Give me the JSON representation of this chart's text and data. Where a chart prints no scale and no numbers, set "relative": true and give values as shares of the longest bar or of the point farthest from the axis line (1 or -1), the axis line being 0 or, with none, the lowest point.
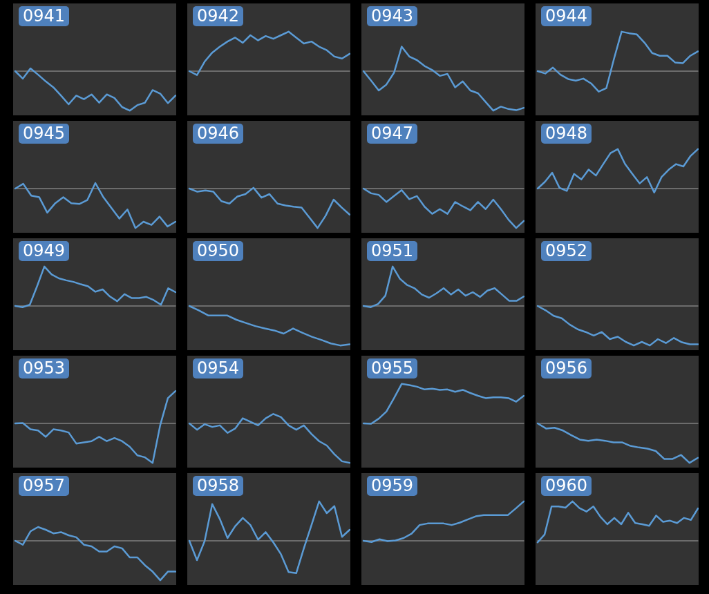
{
  "chart_data": [
    {
      "type": "line",
      "title": "0941",
      "relative": true,
      "color": "#5b9bd5",
      "categories": [
        null,
        null,
        null,
        null,
        null,
        null,
        null,
        null,
        null,
        null,
        null,
        null,
        null,
        null,
        null,
        null,
        null,
        null,
        null,
        null,
        null,
        null
      ],
      "values": [
        0,
        -0.19,
        0.07,
        -0.09,
        -0.26,
        -0.41,
        -0.62,
        -0.84,
        -0.62,
        -0.71,
        -0.59,
        -0.8,
        -0.59,
        -0.68,
        -0.91,
        -1,
        -0.86,
        -0.8,
        -0.48,
        -0.57,
        -0.81,
        -0.62
      ]
    },
    {
      "type": "line",
      "title": "0942",
      "relative": true,
      "color": "#5b9bd5",
      "categories": [
        null,
        null,
        null,
        null,
        null,
        null,
        null,
        null,
        null,
        null,
        null,
        null,
        null,
        null,
        null,
        null,
        null,
        null,
        null,
        null,
        null,
        null
      ],
      "values": [
        0,
        -0.1,
        0.24,
        0.47,
        0.62,
        0.75,
        0.85,
        0.72,
        0.91,
        0.78,
        0.89,
        0.82,
        0.91,
        1,
        0.85,
        0.7,
        0.75,
        0.62,
        0.53,
        0.37,
        0.32,
        0.44
      ]
    },
    {
      "type": "line",
      "title": "0943",
      "relative": true,
      "color": "#5b9bd5",
      "categories": [
        null,
        null,
        null,
        null,
        null,
        null,
        null,
        null,
        null,
        null,
        null,
        null,
        null,
        null,
        null,
        null,
        null,
        null,
        null,
        null,
        null,
        null
      ],
      "values": [
        0,
        -0.24,
        -0.49,
        -0.34,
        -0.04,
        0.62,
        0.37,
        0.28,
        0.13,
        0.03,
        -0.12,
        -0.07,
        -0.41,
        -0.26,
        -0.49,
        -0.56,
        -0.78,
        -1,
        -0.9,
        -0.96,
        -0.99,
        -0.93
      ]
    },
    {
      "type": "line",
      "title": "0944",
      "relative": true,
      "color": "#5b9bd5",
      "categories": [
        null,
        null,
        null,
        null,
        null,
        null,
        null,
        null,
        null,
        null,
        null,
        null,
        null,
        null,
        null,
        null,
        null,
        null,
        null,
        null,
        null,
        null
      ],
      "values": [
        0,
        -0.06,
        0.09,
        -0.09,
        -0.2,
        -0.24,
        -0.19,
        -0.31,
        -0.52,
        -0.43,
        0.31,
        1,
        0.96,
        0.93,
        0.72,
        0.46,
        0.39,
        0.39,
        0.22,
        0.2,
        0.39,
        0.5
      ]
    },
    {
      "type": "line",
      "title": "0945",
      "relative": true,
      "color": "#5b9bd5",
      "categories": [
        null,
        null,
        null,
        null,
        null,
        null,
        null,
        null,
        null,
        null,
        null,
        null,
        null,
        null,
        null,
        null,
        null,
        null,
        null,
        null,
        null
      ],
      "values": [
        0,
        0.12,
        -0.18,
        -0.22,
        -0.61,
        -0.37,
        -0.22,
        -0.37,
        -0.39,
        -0.29,
        0.14,
        -0.22,
        -0.49,
        -0.76,
        -0.53,
        -1,
        -0.84,
        -0.92,
        -0.71,
        -0.96,
        -0.84
      ]
    },
    {
      "type": "line",
      "title": "0946",
      "relative": true,
      "color": "#5b9bd5",
      "categories": [
        null,
        null,
        null,
        null,
        null,
        null,
        null,
        null,
        null,
        null,
        null,
        null,
        null,
        null,
        null,
        null,
        null,
        null,
        null,
        null,
        null
      ],
      "values": [
        0,
        -0.08,
        -0.05,
        -0.08,
        -0.32,
        -0.38,
        -0.2,
        -0.14,
        0.02,
        -0.23,
        -0.14,
        -0.38,
        -0.43,
        -0.46,
        -0.48,
        -0.74,
        -1,
        -0.69,
        -0.28,
        -0.48,
        -0.66
      ]
    },
    {
      "type": "line",
      "title": "0947",
      "relative": true,
      "color": "#5b9bd5",
      "categories": [
        null,
        null,
        null,
        null,
        null,
        null,
        null,
        null,
        null,
        null,
        null,
        null,
        null,
        null,
        null,
        null,
        null,
        null,
        null,
        null,
        null,
        null
      ],
      "values": [
        0,
        -0.12,
        -0.16,
        -0.34,
        -0.19,
        -0.04,
        -0.27,
        -0.19,
        -0.46,
        -0.64,
        -0.52,
        -0.64,
        -0.34,
        -0.45,
        -0.55,
        -0.34,
        -0.52,
        -0.28,
        -0.52,
        -0.79,
        -1,
        -0.82
      ]
    },
    {
      "type": "line",
      "title": "0948",
      "relative": true,
      "color": "#5b9bd5",
      "categories": [
        null,
        null,
        null,
        null,
        null,
        null,
        null,
        null,
        null,
        null,
        null,
        null,
        null,
        null,
        null,
        null,
        null,
        null,
        null,
        null,
        null,
        null,
        null
      ],
      "values": [
        0,
        0.17,
        0.4,
        0.02,
        -0.06,
        0.37,
        0.23,
        0.48,
        0.33,
        0.62,
        0.9,
        1,
        0.62,
        0.37,
        0.13,
        0.29,
        -0.1,
        0.29,
        0.48,
        0.62,
        0.56,
        0.83,
        1
      ]
    },
    {
      "type": "line",
      "title": "0949",
      "relative": true,
      "color": "#5b9bd5",
      "categories": [
        null,
        null,
        null,
        null,
        null,
        null,
        null,
        null,
        null,
        null,
        null,
        null,
        null,
        null,
        null,
        null,
        null,
        null,
        null,
        null,
        null,
        null,
        null
      ],
      "values": [
        0,
        -0.03,
        0.03,
        0.5,
        1,
        0.8,
        0.7,
        0.65,
        0.61,
        0.55,
        0.5,
        0.36,
        0.42,
        0.24,
        0.12,
        0.3,
        0.2,
        0.2,
        0.23,
        0.15,
        0.03,
        0.45,
        0.35
      ]
    },
    {
      "type": "line",
      "title": "0950",
      "relative": true,
      "color": "#5b9bd5",
      "categories": [
        null,
        null,
        null,
        null,
        null,
        null,
        null,
        null,
        null,
        null,
        null,
        null,
        null,
        null,
        null,
        null,
        null,
        null
      ],
      "values": [
        0,
        -0.11,
        -0.24,
        -0.24,
        -0.24,
        -0.35,
        -0.43,
        -0.51,
        -0.57,
        -0.62,
        -0.7,
        -0.57,
        -0.68,
        -0.78,
        -0.86,
        -0.95,
        -1,
        -0.97
      ]
    },
    {
      "type": "line",
      "title": "0951",
      "relative": true,
      "color": "#5b9bd5",
      "categories": [
        null,
        null,
        null,
        null,
        null,
        null,
        null,
        null,
        null,
        null,
        null,
        null,
        null,
        null,
        null,
        null,
        null,
        null,
        null,
        null,
        null,
        null,
        null
      ],
      "values": [
        0,
        -0.03,
        0.05,
        0.26,
        1,
        0.69,
        0.53,
        0.45,
        0.29,
        0.21,
        0.32,
        0.45,
        0.29,
        0.42,
        0.26,
        0.35,
        0.23,
        0.39,
        0.45,
        0.29,
        0.13,
        0.13,
        0.24
      ]
    },
    {
      "type": "line",
      "title": "0952",
      "relative": true,
      "color": "#5b9bd5",
      "categories": [
        null,
        null,
        null,
        null,
        null,
        null,
        null,
        null,
        null,
        null,
        null,
        null,
        null,
        null,
        null,
        null,
        null,
        null,
        null,
        null,
        null
      ],
      "values": [
        0,
        -0.11,
        -0.25,
        -0.31,
        -0.47,
        -0.59,
        -0.66,
        -0.75,
        -0.66,
        -0.84,
        -0.78,
        -0.91,
        -1,
        -0.91,
        -1,
        -0.84,
        -0.94,
        -0.81,
        -0.92,
        -0.97,
        -0.97
      ]
    },
    {
      "type": "line",
      "title": "0953",
      "relative": true,
      "color": "#5b9bd5",
      "categories": [
        null,
        null,
        null,
        null,
        null,
        null,
        null,
        null,
        null,
        null,
        null,
        null,
        null,
        null,
        null,
        null,
        null,
        null,
        null,
        null,
        null,
        null
      ],
      "values": [
        0,
        0.01,
        -0.15,
        -0.18,
        -0.34,
        -0.15,
        -0.18,
        -0.23,
        -0.51,
        -0.48,
        -0.45,
        -0.34,
        -0.45,
        -0.37,
        -0.45,
        -0.59,
        -0.81,
        -0.86,
        -1,
        -0.04,
        0.64,
        0.82
      ]
    },
    {
      "type": "line",
      "title": "0954",
      "relative": true,
      "color": "#5b9bd5",
      "categories": [
        null,
        null,
        null,
        null,
        null,
        null,
        null,
        null,
        null,
        null,
        null,
        null,
        null,
        null,
        null,
        null,
        null,
        null,
        null,
        null,
        null,
        null
      ],
      "values": [
        0,
        -0.16,
        -0.02,
        -0.09,
        -0.05,
        -0.24,
        -0.13,
        0.13,
        0.04,
        -0.05,
        0.13,
        0.24,
        0.16,
        -0.05,
        -0.16,
        -0.05,
        -0.27,
        -0.45,
        -0.56,
        -0.78,
        -0.96,
        -1
      ]
    },
    {
      "type": "line",
      "title": "0955",
      "relative": true,
      "color": "#5b9bd5",
      "categories": [
        null,
        null,
        null,
        null,
        null,
        null,
        null,
        null,
        null,
        null,
        null,
        null,
        null,
        null,
        null,
        null,
        null,
        null,
        null,
        null,
        null,
        null
      ],
      "values": [
        0,
        -0.01,
        0.12,
        0.3,
        0.64,
        1,
        0.97,
        0.93,
        0.86,
        0.88,
        0.85,
        0.86,
        0.8,
        0.85,
        0.77,
        0.7,
        0.64,
        0.66,
        0.66,
        0.64,
        0.55,
        0.7
      ]
    },
    {
      "type": "line",
      "title": "0956",
      "relative": true,
      "color": "#5b9bd5",
      "categories": [
        null,
        null,
        null,
        null,
        null,
        null,
        null,
        null,
        null,
        null,
        null,
        null,
        null,
        null,
        null,
        null,
        null,
        null,
        null,
        null
      ],
      "values": [
        0,
        -0.13,
        -0.11,
        -0.18,
        -0.3,
        -0.41,
        -0.44,
        -0.41,
        -0.44,
        -0.48,
        -0.48,
        -0.57,
        -0.61,
        -0.64,
        -0.7,
        -0.9,
        -0.9,
        -0.8,
        -1,
        -0.87
      ]
    },
    {
      "type": "line",
      "title": "0957",
      "relative": true,
      "color": "#5b9bd5",
      "categories": [
        null,
        null,
        null,
        null,
        null,
        null,
        null,
        null,
        null,
        null,
        null,
        null,
        null,
        null,
        null,
        null,
        null,
        null,
        null,
        null,
        null,
        null
      ],
      "values": [
        0,
        -0.1,
        0.24,
        0.35,
        0.28,
        0.19,
        0.22,
        0.14,
        0.09,
        -0.1,
        -0.14,
        -0.27,
        -0.27,
        -0.14,
        -0.19,
        -0.42,
        -0.42,
        -0.62,
        -0.78,
        -1,
        -0.78,
        -0.78
      ]
    },
    {
      "type": "line",
      "title": "0958",
      "relative": true,
      "color": "#5b9bd5",
      "categories": [
        null,
        null,
        null,
        null,
        null,
        null,
        null,
        null,
        null,
        null,
        null,
        null,
        null,
        null,
        null,
        null,
        null,
        null,
        null,
        null,
        null,
        null
      ],
      "values": [
        0,
        -0.49,
        -0.01,
        0.93,
        0.55,
        0.07,
        0.37,
        0.58,
        0.4,
        0.03,
        0.22,
        -0.04,
        -0.34,
        -0.79,
        -0.82,
        -0.19,
        0.4,
        1,
        0.7,
        0.88,
        0.1,
        0.28
      ]
    },
    {
      "type": "line",
      "title": "0959",
      "relative": true,
      "color": "#5b9bd5",
      "categories": [
        null,
        null,
        null,
        null,
        null,
        null,
        null,
        null,
        null,
        null,
        null,
        null,
        null,
        null,
        null,
        null,
        null,
        null,
        null,
        null,
        null
      ],
      "values": [
        0,
        -0.03,
        0.04,
        -0.01,
        0.01,
        0.07,
        0.18,
        0.4,
        0.44,
        0.44,
        0.44,
        0.4,
        0.46,
        0.54,
        0.62,
        0.65,
        0.65,
        0.65,
        0.65,
        0.82,
        1
      ]
    },
    {
      "type": "line",
      "title": "0960",
      "relative": true,
      "color": "#5b9bd5",
      "categories": [
        null,
        null,
        null,
        null,
        null,
        null,
        null,
        null,
        null,
        null,
        null,
        null,
        null,
        null,
        null,
        null,
        null,
        null,
        null,
        null,
        null,
        null,
        null,
        null
      ],
      "values": [
        -0.04,
        0.16,
        0.87,
        0.87,
        0.84,
        1,
        0.83,
        0.74,
        0.87,
        0.61,
        0.42,
        0.58,
        0.42,
        0.71,
        0.45,
        0.42,
        0.38,
        0.64,
        0.48,
        0.51,
        0.45,
        0.58,
        0.53,
        0.82
      ]
    }
  ]
}
